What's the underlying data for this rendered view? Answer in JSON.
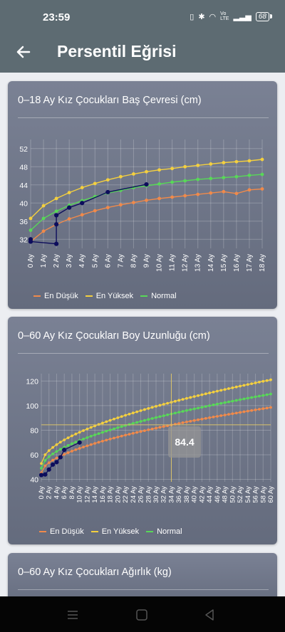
{
  "status_bar": {
    "time": "23:59",
    "network_label": "Vo\nLTE",
    "battery": "68"
  },
  "app_bar": {
    "title": "Persentil Eğrisi"
  },
  "cards": [
    {
      "title": "0–18 Ay Kız Çocukları Baş Çevresi (cm)",
      "chart_data": {
        "type": "line",
        "title": "0–18 Ay Kız Çocukları Baş Çevresi (cm)",
        "x": [
          0,
          1,
          2,
          3,
          4,
          5,
          6,
          7,
          8,
          9,
          10,
          11,
          12,
          13,
          14,
          15,
          16,
          17,
          18
        ],
        "x_tick_labels": [
          "0 Ay",
          "1 Ay",
          "2 Ay",
          "3 Ay",
          "4 Ay",
          "5 Ay",
          "6 Ay",
          "7 Ay",
          "8 Ay",
          "9 Ay",
          "10 Ay",
          "11 Ay",
          "12 Ay",
          "13 Ay",
          "14 Ay",
          "15 Ay",
          "16 Ay",
          "17 Ay",
          "18 Ay"
        ],
        "y_ticks": [
          32,
          36,
          40,
          44,
          48,
          52
        ],
        "ylim": [
          30,
          54
        ],
        "grid": true,
        "legend_position": "bottom",
        "series": [
          {
            "name": "En Düşük",
            "color": "#f08a4b",
            "values": [
              31.5,
              33.8,
              35.3,
              36.5,
              37.4,
              38.3,
              39.0,
              39.6,
              40.1,
              40.6,
              41.0,
              41.3,
              41.6,
              41.9,
              42.2,
              42.5,
              42.1,
              42.9,
              43.1
            ]
          },
          {
            "name": "En Yüksek",
            "color": "#f4d03f",
            "values": [
              36.6,
              39.4,
              41.0,
              42.3,
              43.4,
              44.3,
              45.1,
              45.8,
              46.4,
              46.9,
              47.3,
              47.6,
              48.0,
              48.3,
              48.6,
              48.9,
              49.1,
              49.3,
              49.6
            ]
          },
          {
            "name": "Normal",
            "color": "#58d858",
            "values": [
              34.0,
              36.6,
              38.2,
              39.5,
              40.5,
              41.4,
              42.2,
              42.8,
              43.4,
              43.8,
              44.2,
              44.6,
              44.9,
              45.2,
              45.4,
              45.6,
              45.8,
              46.1,
              46.3
            ]
          },
          {
            "name": "",
            "color": "#0d0d5c",
            "points": [
              [
                0,
                31.5
              ],
              [
                0,
                32
              ],
              [
                0,
                31.5
              ],
              [
                2,
                31
              ],
              [
                2,
                35.3
              ],
              [
                2,
                37.3
              ],
              [
                3,
                39
              ],
              [
                4,
                40
              ],
              [
                6,
                42.4
              ],
              [
                9,
                44.1
              ]
            ]
          }
        ]
      },
      "legend": [
        {
          "label": "En Düşük",
          "color": "#f08a4b"
        },
        {
          "label": "En Yüksek",
          "color": "#f4d03f"
        },
        {
          "label": "Normal",
          "color": "#58d858"
        }
      ]
    },
    {
      "title": "0–60 Ay Kız Çocukları Boy Uzunluğu (cm)",
      "tooltip": "84.4",
      "chart_data": {
        "type": "line",
        "title": "0–60 Ay Kız Çocukları Boy Uzunluğu (cm)",
        "x_tick_labels": [
          "0 Ay",
          "2 Ay",
          "4 Ay",
          "6 Ay",
          "8 Ay",
          "10 Ay",
          "12 Ay",
          "14 Ay",
          "16 Ay",
          "18 Ay",
          "20 Ay",
          "22 Ay",
          "24 Ay",
          "26 Ay",
          "28 Ay",
          "30 Ay",
          "32 Ay",
          "34 Ay",
          "36 Ay",
          "38 Ay",
          "40 Ay",
          "42 Ay",
          "44 Ay",
          "46 Ay",
          "48 Ay",
          "50 Ay",
          "52 Ay",
          "54 Ay",
          "56 Ay",
          "58 Ay",
          "60 Ay"
        ],
        "y_ticks": [
          40,
          60,
          80,
          100,
          120
        ],
        "ylim": [
          38,
          126
        ],
        "grid": true,
        "legend_position": "bottom",
        "crosshair": {
          "x": 34,
          "y": 84.4
        },
        "series": [
          {
            "name": "En Düşük",
            "color": "#f08a4b",
            "start": 45.4,
            "end": 98.5
          },
          {
            "name": "En Yüksek",
            "color": "#f4d03f",
            "start": 52.9,
            "end": 121.0
          },
          {
            "name": "Normal",
            "color": "#58d858",
            "start": 49.1,
            "end": 109.4
          },
          {
            "name": "",
            "color": "#0d0d5c",
            "points": [
              [
                0,
                43.5
              ],
              [
                1,
                44
              ],
              [
                2,
                48
              ],
              [
                3,
                52
              ],
              [
                4,
                54
              ],
              [
                5,
                58
              ],
              [
                6,
                64
              ],
              [
                10,
                70
              ]
            ]
          }
        ]
      },
      "legend": [
        {
          "label": "En Düşük",
          "color": "#f08a4b"
        },
        {
          "label": "En Yüksek",
          "color": "#f4d03f"
        },
        {
          "label": "Normal",
          "color": "#58d858"
        }
      ]
    },
    {
      "title": "0–60 Ay Kız Çocukları Ağırlık (kg)"
    }
  ]
}
